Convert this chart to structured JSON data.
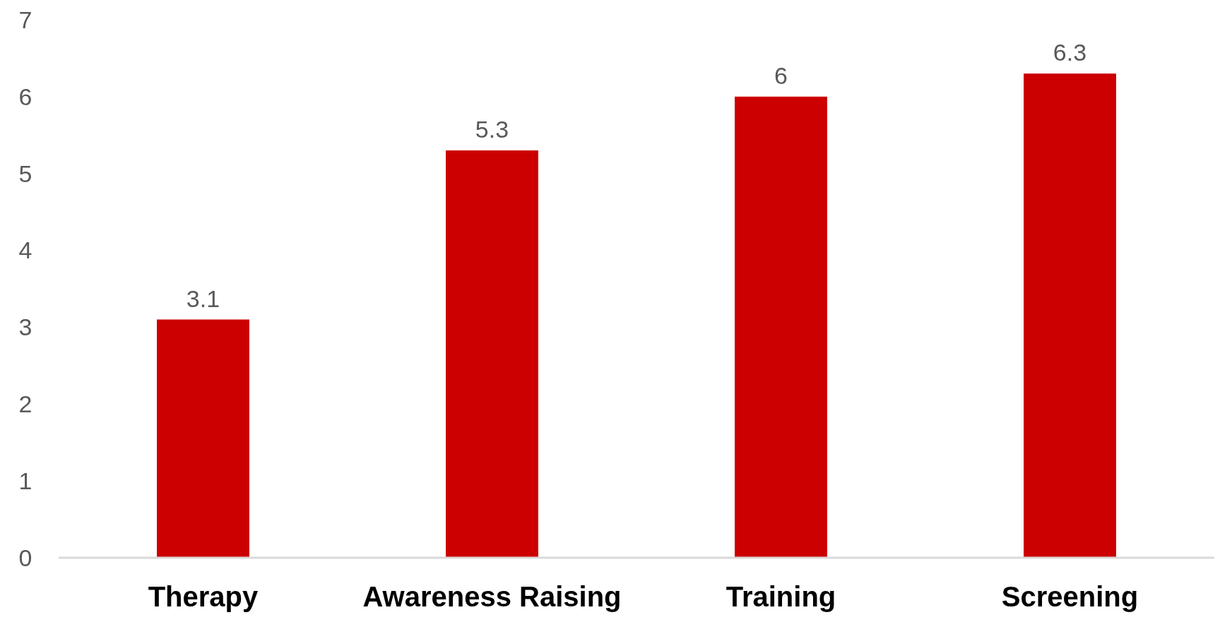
{
  "chart_data": {
    "type": "bar",
    "categories": [
      "Therapy",
      "Awareness Raising",
      "Training",
      "Screening"
    ],
    "values": [
      3.1,
      5.3,
      6,
      6.3
    ],
    "color": "#cc0000",
    "ylim": [
      0,
      7
    ],
    "yticks": [
      0,
      1,
      2,
      3,
      4,
      5,
      6,
      7
    ],
    "grid": false,
    "data_labels": true
  }
}
